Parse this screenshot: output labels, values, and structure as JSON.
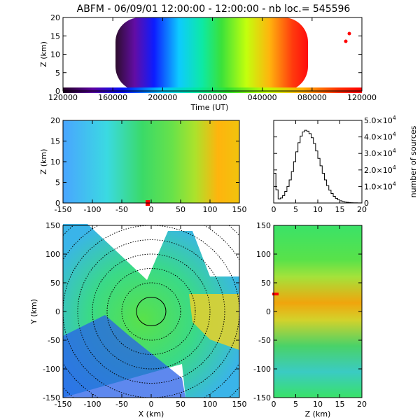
{
  "title": "ABFM - 06/09/01 12:00:00 - 12:00:00 - nb loc.= 545596",
  "chart_data": [
    {
      "id": "time-height",
      "type": "scatter",
      "xlabel": "Time (UT)",
      "ylabel": "Z (km)",
      "x_tick_labels": [
        "120000",
        "160000",
        "200000",
        "000000",
        "040000",
        "080000",
        "120000"
      ],
      "y_ticks": [
        0,
        5,
        10,
        15,
        20
      ],
      "ylim": [
        0,
        20
      ]
    },
    {
      "id": "x-z",
      "type": "scatter",
      "xlabel": "",
      "ylabel": "Z (km)",
      "x_ticks": [
        -150,
        -100,
        -50,
        0,
        50,
        100,
        150
      ],
      "y_ticks": [
        0,
        5,
        10,
        15,
        20
      ],
      "xlim": [
        -150,
        150
      ],
      "ylim": [
        0,
        20
      ]
    },
    {
      "id": "altitude-histogram",
      "type": "line",
      "xlabel": "",
      "ylabel": "number of sources",
      "x_ticks": [
        0,
        5,
        10,
        15,
        20
      ],
      "xlim": [
        0,
        20
      ],
      "ylim": [
        0,
        50000
      ],
      "y_tick_labels": [
        {
          "v": 0,
          "m": "0",
          "e": ""
        },
        {
          "v": 10000,
          "m": "1.0×10",
          "e": "4"
        },
        {
          "v": 20000,
          "m": "2.0×10",
          "e": "4"
        },
        {
          "v": 30000,
          "m": "3.0×10",
          "e": "4"
        },
        {
          "v": 40000,
          "m": "4.0×10",
          "e": "4"
        },
        {
          "v": 50000,
          "m": "5.0×10",
          "e": "4"
        }
      ],
      "x": [
        0,
        0.5,
        1,
        1.5,
        2,
        2.5,
        3,
        3.5,
        4,
        4.5,
        5,
        5.5,
        6,
        6.5,
        7,
        7.5,
        8,
        8.5,
        9,
        9.5,
        10,
        10.5,
        11,
        11.5,
        12,
        12.5,
        13,
        13.5,
        14,
        14.5,
        15,
        15.5,
        16,
        16.5,
        17,
        17.5,
        18,
        18.5,
        19,
        19.5
      ],
      "values": [
        18000,
        8000,
        2500,
        3000,
        4500,
        7000,
        10000,
        14000,
        19000,
        25000,
        31000,
        36500,
        40500,
        43000,
        44000,
        43500,
        42000,
        39500,
        36000,
        31500,
        27000,
        22500,
        18000,
        14000,
        10500,
        7800,
        5700,
        4000,
        2800,
        1900,
        1300,
        900,
        600,
        400,
        250,
        150,
        100,
        80,
        60,
        40
      ]
    },
    {
      "id": "plan-view",
      "type": "scatter",
      "xlabel": "X (km)",
      "ylabel": "Y (km)",
      "x_ticks": [
        -150,
        -100,
        -50,
        0,
        50,
        100,
        150
      ],
      "y_ticks": [
        -150,
        -100,
        -50,
        0,
        50,
        100,
        150
      ],
      "xlim": [
        -150,
        150
      ],
      "ylim": [
        -150,
        150
      ],
      "range_rings_km": [
        25,
        50,
        75,
        100,
        125,
        150,
        175,
        200
      ]
    },
    {
      "id": "z-y",
      "type": "scatter",
      "xlabel": "Z (km)",
      "ylabel": "",
      "x_ticks": [
        0,
        5,
        10,
        15,
        20
      ],
      "y_ticks": [
        -150,
        -100,
        -50,
        0,
        50,
        100,
        150
      ],
      "xlim": [
        0,
        20
      ],
      "ylim": [
        -150,
        150
      ]
    }
  ]
}
